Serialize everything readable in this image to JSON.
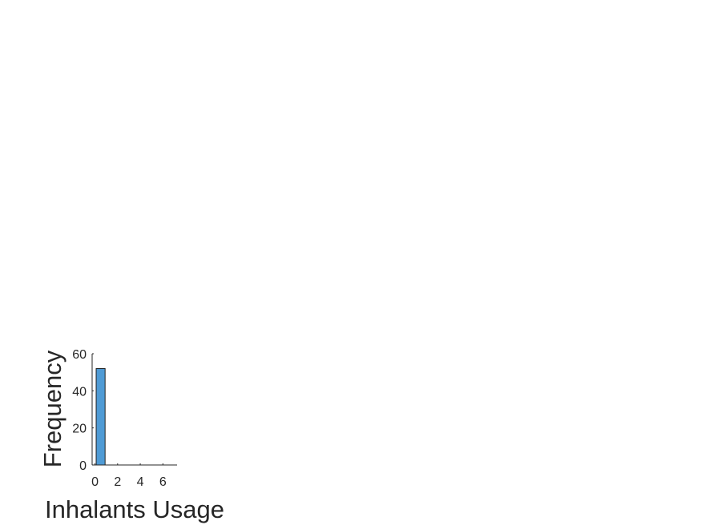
{
  "chart_data": {
    "type": "bar",
    "title": "",
    "xlabel": "Inhalants Usage",
    "ylabel": "Frequency",
    "xlim": [
      -0.25,
      7.25
    ],
    "ylim": [
      0,
      60
    ],
    "xticks": [
      0,
      2,
      4,
      6
    ],
    "yticks": [
      0,
      20,
      40,
      60
    ],
    "bin_width": 1,
    "bins": [
      {
        "x_start": 0,
        "x_end": 1,
        "value": 52
      }
    ],
    "grid": false,
    "legend": "none",
    "bar_color": "#4f9bd5",
    "edge_color": "#1f1f1f"
  }
}
